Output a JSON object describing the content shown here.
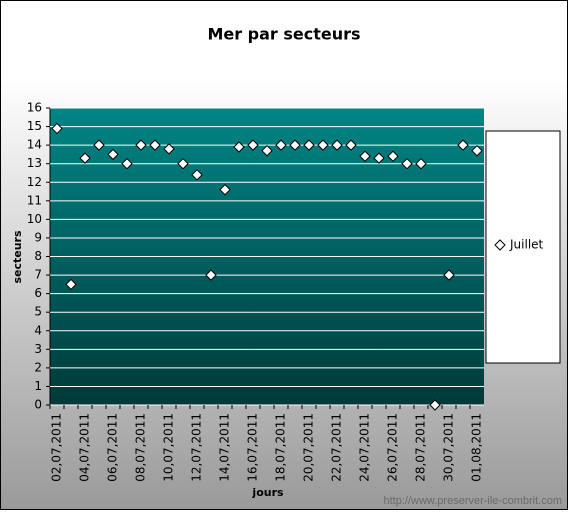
{
  "chart_data": {
    "type": "scatter",
    "title": "Mer par secteurs",
    "x_label": "jours",
    "y_label": "secteurs",
    "watermark": "http://www.preserver-ile-combrit.com",
    "categories": [
      "02,07,2011",
      null,
      "04,07,2011",
      null,
      "06,07,2011",
      null,
      "08,07,2011",
      null,
      "10,07,2011",
      null,
      "12,07,2011",
      null,
      "14,07,2011",
      null,
      "16,07,2011",
      null,
      "18,07,2011",
      null,
      "20,07,2011",
      null,
      "22,07,2011",
      null,
      "24,07,2011",
      null,
      "26,07,2011",
      null,
      "28,07,2011",
      null,
      "30,07,2011",
      null,
      "01,08,2011"
    ],
    "series": [
      {
        "name": "Juillet",
        "color": "#ffffff",
        "values": [
          14.9,
          6.5,
          13.3,
          14,
          13.5,
          13,
          14,
          14,
          13.8,
          13,
          12.4,
          7,
          11.6,
          13.9,
          14,
          13.7,
          14,
          14,
          14,
          14,
          14,
          14,
          13.4,
          13.3,
          13.4,
          13,
          13,
          0,
          7,
          14,
          13.7
        ]
      }
    ],
    "ylim": [
      0,
      16
    ],
    "yticks": [
      0,
      1,
      2,
      3,
      4,
      5,
      6,
      7,
      8,
      9,
      10,
      11,
      12,
      13,
      14,
      15,
      16
    ],
    "grid": true,
    "legend": "right"
  }
}
